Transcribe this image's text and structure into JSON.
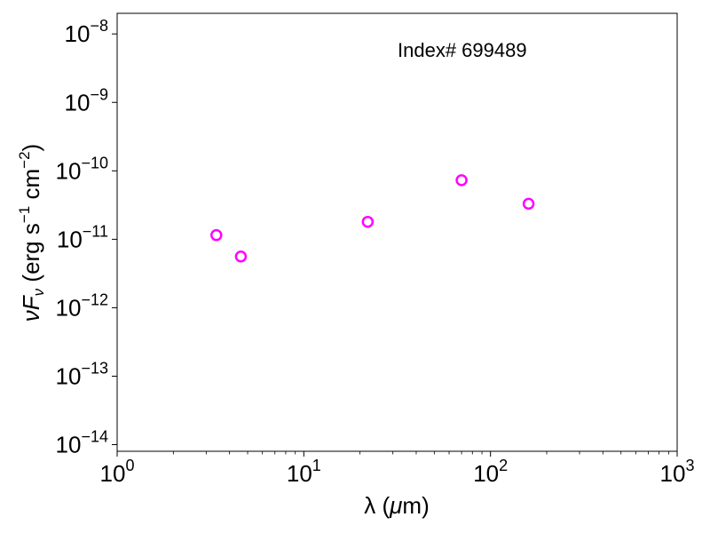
{
  "chart_data": {
    "type": "scatter",
    "title": "",
    "annotation": "Index# 699489",
    "xlabel": {
      "prefix": "λ (",
      "greek": "μ",
      "suffix": "m)"
    },
    "ylabel": {
      "nu": "ν",
      "F": "F",
      "sub": "ν",
      "open": " (erg s",
      "exp1": "−1",
      "mid": " cm",
      "exp2": "−2",
      "close": ")"
    },
    "xscale": "log",
    "yscale": "log",
    "xlim": [
      1,
      1000
    ],
    "ylim": [
      8e-15,
      2e-08
    ],
    "x_ticks": [
      {
        "value": 1,
        "base": "10",
        "exp": "0"
      },
      {
        "value": 10,
        "base": "10",
        "exp": "1"
      },
      {
        "value": 100,
        "base": "10",
        "exp": "2"
      },
      {
        "value": 1000,
        "base": "10",
        "exp": "3"
      }
    ],
    "y_ticks": [
      {
        "value": 1e-14,
        "base": "10",
        "exp": "−14"
      },
      {
        "value": 1e-13,
        "base": "10",
        "exp": "−13"
      },
      {
        "value": 1e-12,
        "base": "10",
        "exp": "−12"
      },
      {
        "value": 1e-11,
        "base": "10",
        "exp": "−11"
      },
      {
        "value": 1e-10,
        "base": "10",
        "exp": "−10"
      },
      {
        "value": 1e-09,
        "base": "10",
        "exp": "−9"
      },
      {
        "value": 1e-08,
        "base": "10",
        "exp": "−8"
      }
    ],
    "series": [
      {
        "color": "#ff00ff",
        "marker": "open-circle",
        "points": [
          {
            "x": 3.4,
            "y": 1.15e-11
          },
          {
            "x": 4.6,
            "y": 5.6e-12
          },
          {
            "x": 22,
            "y": 1.8e-11
          },
          {
            "x": 70,
            "y": 7.3e-11
          },
          {
            "x": 160,
            "y": 3.3e-11
          }
        ]
      }
    ],
    "grid": false,
    "legend": "none"
  }
}
